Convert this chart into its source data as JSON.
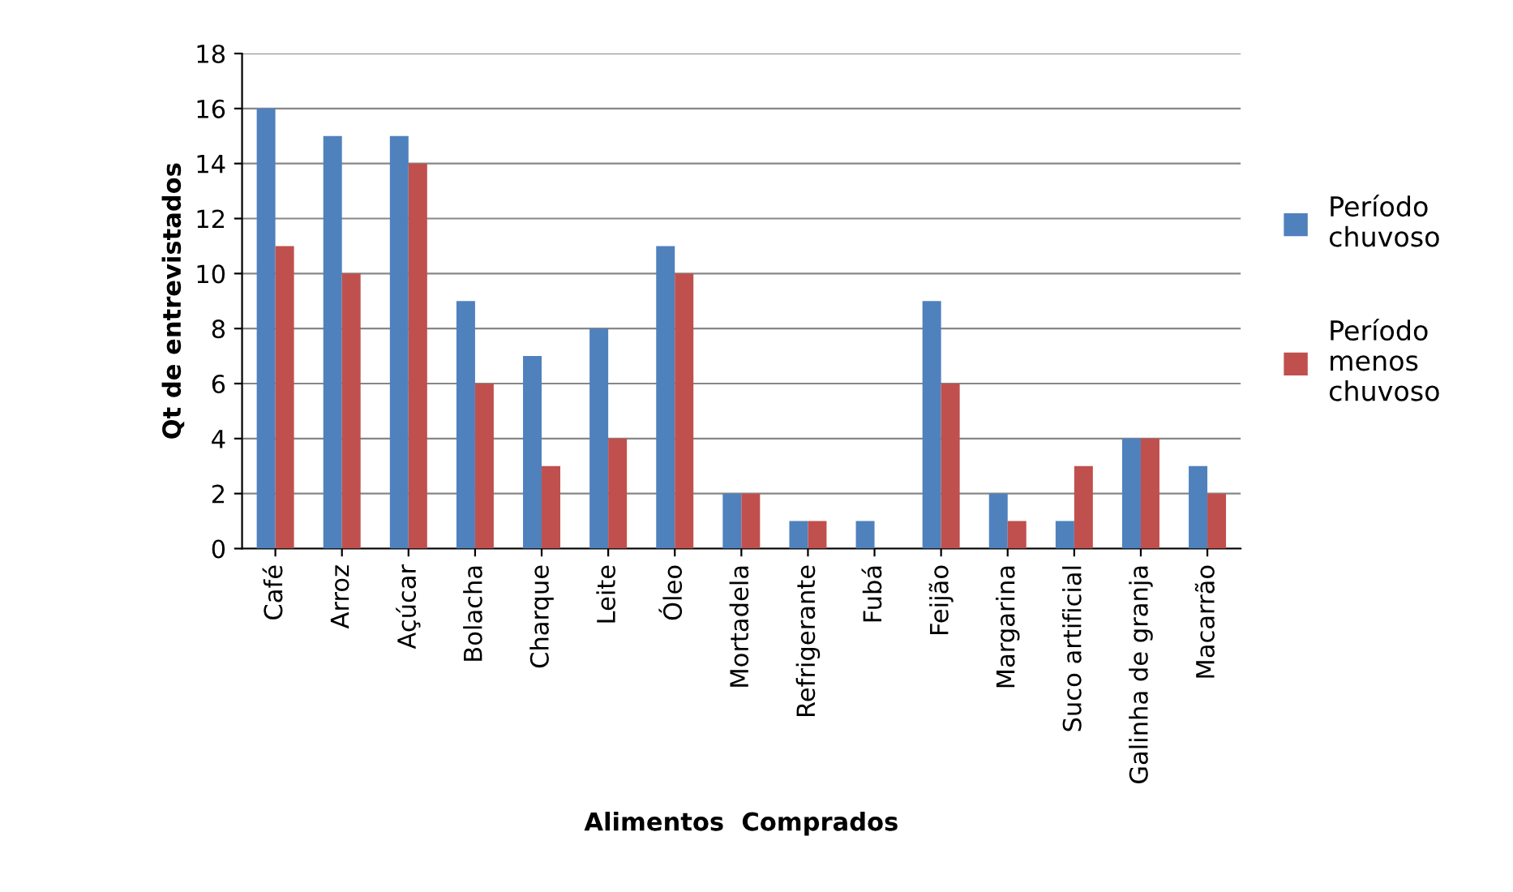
{
  "chart_data": {
    "type": "bar",
    "xlabel": "Alimentos  Comprados",
    "ylabel": "Qt de entrevistados",
    "categories": [
      "Café",
      "Arroz",
      "Açúcar",
      "Bolacha",
      "Charque",
      "Leite",
      "Óleo",
      "Mortadela",
      "Refrigerante",
      "Fubá",
      "Feijão",
      "Margarina",
      "Suco artificial",
      "Galinha de granja",
      "Macarrão"
    ],
    "series": [
      {
        "name": "Período chuvoso",
        "color": "#4f81bd",
        "values": [
          16,
          15,
          15,
          9,
          7,
          8,
          11,
          2,
          1,
          1,
          9,
          2,
          1,
          4,
          3
        ]
      },
      {
        "name": "Período menos chuvoso",
        "color": "#c0504d",
        "values": [
          11,
          10,
          14,
          6,
          3,
          4,
          10,
          2,
          1,
          0,
          6,
          1,
          3,
          4,
          2
        ]
      }
    ],
    "ylim": [
      0,
      18
    ],
    "yticks": [
      0,
      2,
      4,
      6,
      8,
      10,
      12,
      14,
      16,
      18
    ],
    "grid": "y",
    "legend": "right"
  }
}
